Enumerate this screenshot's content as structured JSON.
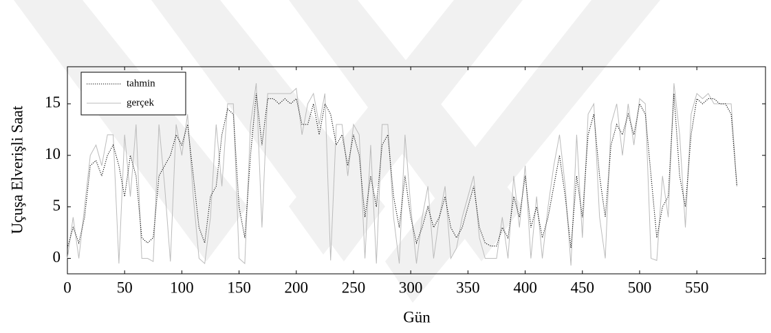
{
  "chart_data": {
    "type": "line",
    "xlabel": "Gün",
    "ylabel": "Uçuşa Elverişli Saat",
    "x": [
      0,
      5,
      10,
      15,
      20,
      25,
      30,
      35,
      40,
      45,
      50,
      55,
      60,
      65,
      70,
      75,
      80,
      85,
      90,
      95,
      100,
      105,
      110,
      115,
      120,
      125,
      130,
      135,
      140,
      145,
      150,
      155,
      160,
      165,
      170,
      175,
      180,
      185,
      190,
      195,
      200,
      205,
      210,
      215,
      220,
      225,
      230,
      235,
      240,
      245,
      250,
      255,
      260,
      265,
      270,
      275,
      280,
      285,
      290,
      295,
      300,
      305,
      310,
      315,
      320,
      325,
      330,
      335,
      340,
      345,
      350,
      355,
      360,
      365,
      370,
      375,
      380,
      385,
      390,
      395,
      400,
      405,
      410,
      415,
      420,
      425,
      430,
      435,
      440,
      445,
      450,
      455,
      460,
      465,
      470,
      475,
      480,
      485,
      490,
      495,
      500,
      505,
      510,
      515,
      520,
      525,
      530,
      535,
      540,
      545,
      550,
      555,
      560,
      565,
      570,
      575,
      580,
      585
    ],
    "series": [
      {
        "name": "tahmin",
        "color": "#000000",
        "dash": "dotted",
        "values": [
          1,
          3,
          1.5,
          4,
          9,
          9.5,
          8,
          10,
          11,
          9,
          6,
          10,
          8,
          2,
          1.5,
          2,
          8,
          9,
          10,
          12,
          11,
          13,
          8,
          3,
          1.5,
          6,
          7,
          12,
          14.5,
          14,
          5,
          2,
          10,
          16,
          11,
          15.5,
          15.5,
          15,
          15.5,
          15,
          15.5,
          13,
          13,
          15,
          12,
          15,
          14,
          11,
          12,
          9,
          12,
          10,
          4,
          8,
          5,
          11,
          12,
          6,
          3,
          8,
          4,
          1.5,
          3,
          5,
          3,
          4,
          6,
          3,
          2,
          3,
          5,
          7,
          3,
          1.5,
          1.2,
          1.2,
          3,
          2,
          6,
          4,
          8,
          3,
          5,
          2,
          4,
          7,
          10,
          6,
          1,
          8,
          4,
          12,
          14,
          8,
          4,
          11,
          13,
          12,
          14,
          12,
          15,
          14,
          8,
          2,
          5,
          6,
          16,
          8,
          5,
          12,
          15.5,
          15,
          15.5,
          15.5,
          15,
          15,
          14,
          7
        ]
      },
      {
        "name": "gerçek",
        "color": "#bbbbbb",
        "dash": "solid",
        "values": [
          0,
          4,
          0,
          5,
          10,
          11,
          9,
          12,
          12,
          -0.5,
          12,
          6,
          13,
          0,
          0,
          -0.3,
          13,
          7,
          -0.3,
          13,
          10,
          14,
          6,
          0,
          -0.5,
          4,
          13,
          7,
          15,
          15,
          0,
          -0.5,
          13,
          17,
          3,
          16,
          16,
          16,
          16,
          16,
          16.5,
          12,
          15,
          16,
          13,
          16,
          -0.2,
          13,
          13,
          8,
          13,
          12,
          0,
          11,
          -0.5,
          13,
          13,
          4,
          -0.5,
          12,
          5,
          -0.5,
          4,
          7,
          0,
          4,
          7,
          0,
          1,
          4,
          6,
          8,
          2,
          0,
          0,
          0,
          4,
          0,
          8,
          3,
          9,
          0,
          6,
          0,
          5,
          9,
          12,
          7,
          -0.7,
          12,
          2,
          14,
          15,
          4,
          0,
          13,
          15,
          10,
          15,
          11,
          15.5,
          15,
          0,
          -0.2,
          8,
          4,
          17,
          12,
          3,
          14,
          16,
          15.5,
          16,
          15,
          15,
          15,
          15,
          7
        ]
      }
    ],
    "xlim": [
      0,
      610
    ],
    "ylim": [
      -1.5,
      18.6
    ],
    "xticks": [
      0,
      50,
      100,
      150,
      200,
      250,
      300,
      350,
      400,
      450,
      500,
      550
    ],
    "yticks": [
      0,
      5,
      10,
      15
    ],
    "grid": false,
    "legend": "north west"
  }
}
